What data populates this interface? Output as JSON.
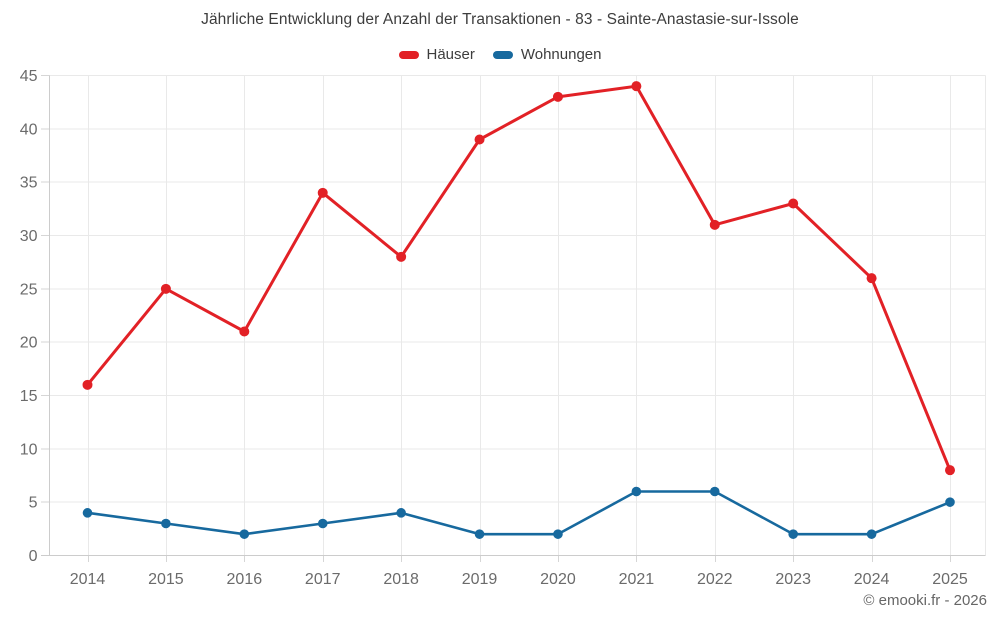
{
  "chart_data": {
    "type": "line",
    "title": "Jährliche Entwicklung der Anzahl der Transaktionen - 83 - Sainte-Anastasie-sur-Issole",
    "categories": [
      "2014",
      "2015",
      "2016",
      "2017",
      "2018",
      "2019",
      "2020",
      "2021",
      "2022",
      "2023",
      "2024",
      "2025"
    ],
    "series": [
      {
        "name": "Häuser",
        "color": "#e22126",
        "line_width": 3,
        "point_radius": 5,
        "values": [
          16,
          25,
          21,
          34,
          28,
          39,
          43,
          44,
          31,
          33,
          26,
          8
        ]
      },
      {
        "name": "Wohnungen",
        "color": "#17699e",
        "line_width": 2.6,
        "point_radius": 4.8,
        "values": [
          4,
          3,
          2,
          3,
          4,
          2,
          2,
          6,
          6,
          2,
          2,
          5
        ]
      }
    ],
    "ylim": [
      0,
      45
    ],
    "yticks": [
      0,
      5,
      10,
      15,
      20,
      25,
      30,
      35,
      40,
      45
    ],
    "grid": true,
    "legend_position": "top",
    "colors": {
      "grid_line": "#e9e9e9",
      "axis_line": "#cccccc",
      "tick_mark": "#d6d6d6",
      "tick_label": "#6b6b6b"
    }
  },
  "footer": {
    "copyright": "© emooki.fr - 2026"
  }
}
